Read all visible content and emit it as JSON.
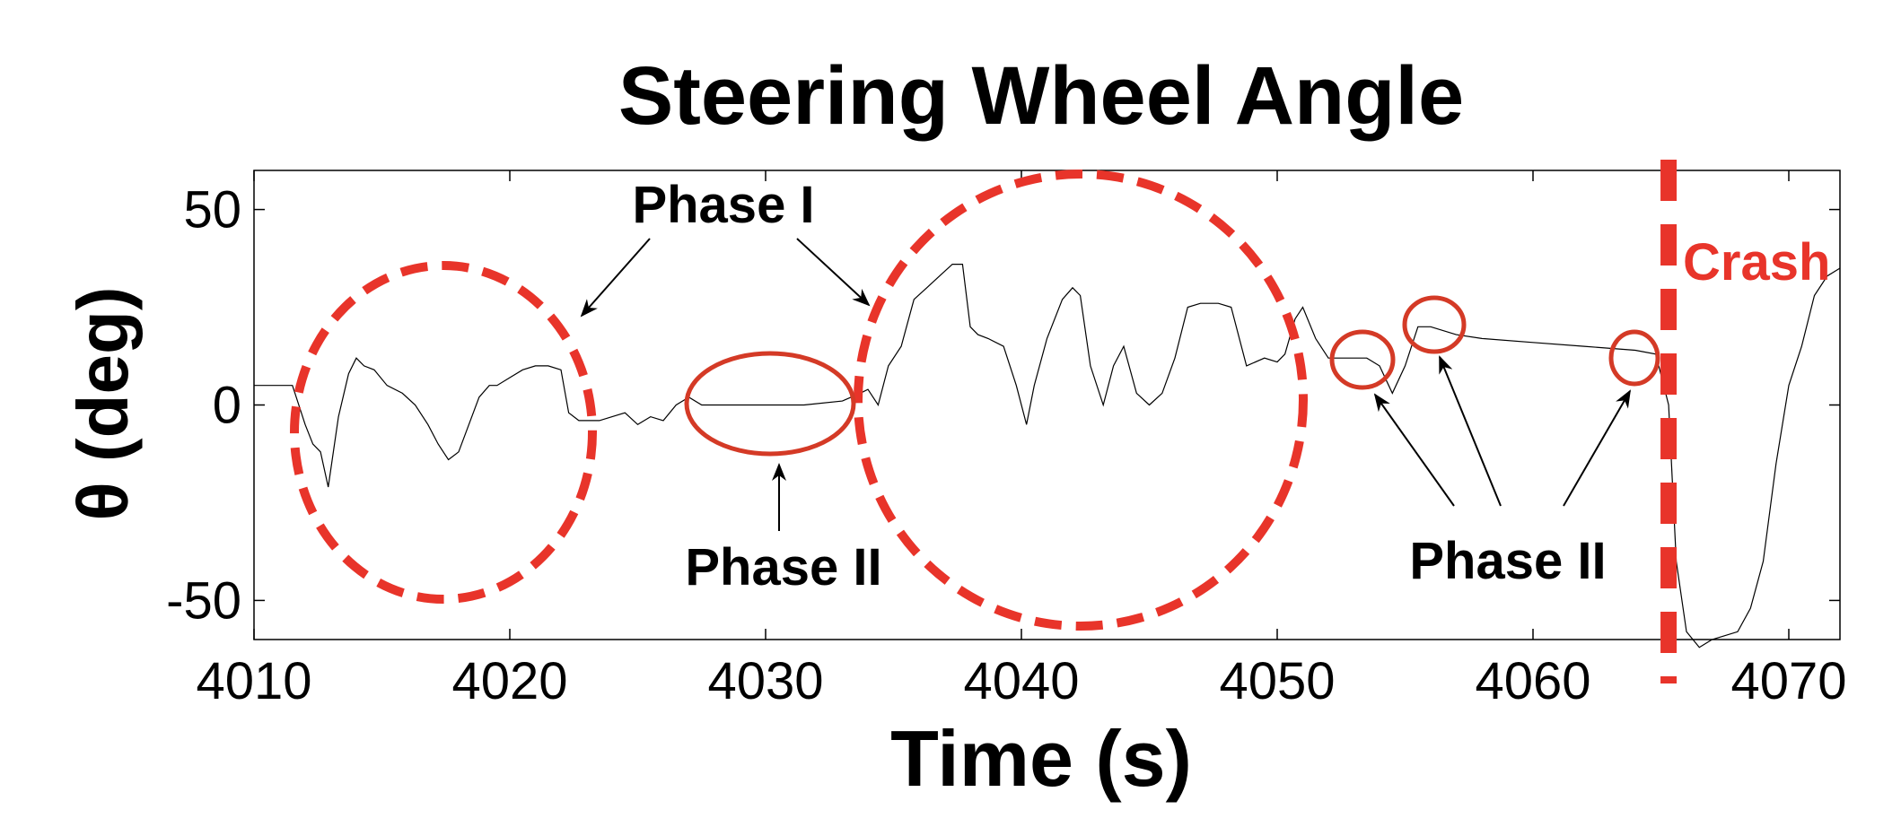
{
  "chart_data": {
    "type": "line",
    "title": "Steering Wheel Angle",
    "xlabel": "Time (s)",
    "ylabel": "θ (deg)",
    "xlim": [
      4010,
      4072
    ],
    "ylim": [
      -60,
      60
    ],
    "xticks": [
      4010,
      4020,
      4030,
      4040,
      4050,
      4060,
      4070
    ],
    "yticks": [
      50,
      0,
      -50
    ],
    "grid": false,
    "series": [
      {
        "color": "#000000",
        "x": [
          4010,
          4011.5,
          4012.0,
          4012.3,
          4012.6,
          4012.9,
          4013.3,
          4013.7,
          4014.0,
          4014.3,
          4014.7,
          4015.2,
          4015.8,
          4016.3,
          4016.8,
          4017.2,
          4017.6,
          4018.0,
          4018.4,
          4018.8,
          4019.2,
          4019.5,
          4020.0,
          4020.5,
          4021.0,
          4021.5,
          4022.0,
          4022.3,
          4022.7,
          4023.5,
          4024.5,
          4025.0,
          4025.5,
          4026.0,
          4026.5,
          4027.0,
          4027.5,
          4028.5,
          4030.0,
          4031.5,
          4033.0,
          4033.7,
          4034.0,
          4034.4,
          4034.8,
          4035.3,
          4035.8,
          4036.3,
          4036.8,
          4037.3,
          4037.7,
          4038.0,
          4038.3,
          4038.7,
          4039.3,
          4039.8,
          4040.2,
          4040.5,
          4041.0,
          4041.6,
          4042.0,
          4042.3,
          4042.7,
          4043.2,
          4043.6,
          4044.0,
          4044.5,
          4045.0,
          4045.5,
          4046.0,
          4046.5,
          4047.0,
          4047.7,
          4048.2,
          4048.8,
          4049.5,
          4050.0,
          4050.3,
          4050.7,
          4051.0,
          4051.5,
          4052.0,
          4052.5,
          4053.0,
          4053.5,
          4054.0,
          4054.5,
          4055.0,
          4055.5,
          4056.0,
          4057.0,
          4058.0,
          4060.0,
          4062.0,
          4064.0,
          4064.8,
          4065.3,
          4065.6,
          4066.0,
          4066.5,
          4067.0,
          4068.0,
          4068.5,
          4069.0,
          4069.5,
          4070.0,
          4070.5,
          4071.0,
          4071.5,
          4072.0
        ],
        "y": [
          5,
          5,
          -5,
          -10,
          -12,
          -21,
          -3,
          8,
          12,
          10,
          9,
          5,
          3,
          0,
          -5,
          -10,
          -14,
          -12,
          -5,
          2,
          5,
          5,
          7,
          9,
          10,
          10,
          9,
          -2,
          -4,
          -4,
          -2,
          -5,
          -3,
          -4,
          0,
          2,
          0,
          0,
          0,
          0,
          1,
          3,
          4,
          0,
          10,
          15,
          27,
          30,
          33,
          36,
          36,
          20,
          18,
          17,
          15,
          5,
          -5,
          5,
          17,
          27,
          30,
          28,
          10,
          0,
          10,
          15,
          3,
          0,
          3,
          12,
          25,
          26,
          26,
          25,
          10,
          12,
          11,
          13,
          22,
          25,
          17,
          12,
          12,
          12,
          12,
          10,
          3,
          10,
          20,
          20,
          18,
          17,
          16,
          15,
          14,
          13,
          0,
          -40,
          -58,
          -62,
          -60,
          -58,
          -52,
          -40,
          -15,
          5,
          15,
          28,
          33,
          35
        ]
      }
    ],
    "annotations": {
      "phase1": "Phase I",
      "phase2_left": "Phase II",
      "phase2_right": "Phase II",
      "crash": "Crash",
      "crash_x": 4065.3
    },
    "colors": {
      "highlight": "#e8342a",
      "ellipse": "#d43a26",
      "line": "#000000",
      "axis": "#000000"
    }
  }
}
